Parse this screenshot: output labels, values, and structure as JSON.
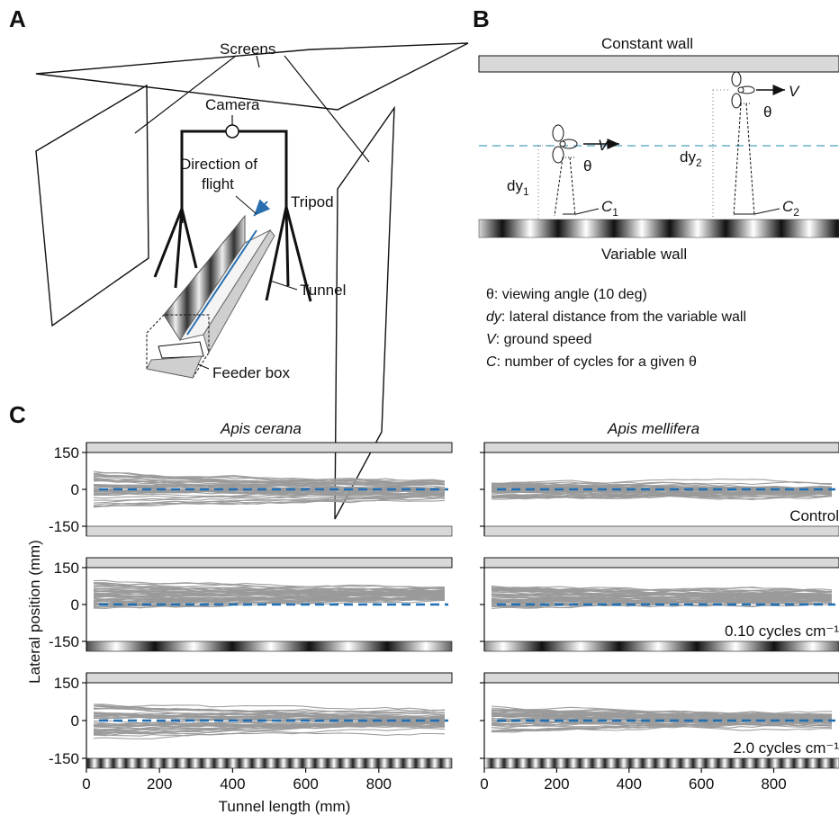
{
  "panels": {
    "a": {
      "letter": "A",
      "labels": {
        "screens": "Screens",
        "camera": "Camera",
        "direction_line1": "Direction of",
        "direction_line2": "flight",
        "tripod": "Tripod",
        "tunnel": "Tunnel",
        "feeder": "Feeder box"
      }
    },
    "b": {
      "letter": "B",
      "constant_wall": "Constant wall",
      "variable_wall": "Variable wall",
      "v_symbol": "V",
      "theta_symbol": "θ",
      "dy1_base": "dy",
      "dy1_sub": "1",
      "dy2_base": "dy",
      "dy2_sub": "2",
      "c1_base": "C",
      "c1_sub": "1",
      "c2_base": "C",
      "c2_sub": "2",
      "legend": [
        {
          "sym": "θ",
          "text": ": viewing angle (10 deg)"
        },
        {
          "sym": "dy",
          "text": ": lateral distance from the variable wall"
        },
        {
          "sym": "V",
          "text": ": ground speed"
        },
        {
          "sym": "C",
          "text": ": number of cycles for a given θ"
        }
      ]
    },
    "c": {
      "letter": "C",
      "species_left": "Apis cerana",
      "species_right": "Apis mellifera",
      "ylabel": "Lateral position (mm)",
      "xlabel": "Tunnel length (mm)",
      "conditions": [
        "Control",
        "0.10 cycles cm⁻¹",
        "2.0 cycles cm⁻¹"
      ],
      "y_ticks": [
        "150",
        "0",
        "-150"
      ],
      "x_ticks": [
        "0",
        "200",
        "400",
        "600",
        "800"
      ]
    }
  },
  "colors": {
    "trajectory": "#9a9a9a",
    "midline": "#1f6fb5",
    "wall": "#d9d9d9",
    "dashed_guide": "#8fc3d6",
    "arrow": "#2a6fb0"
  }
}
